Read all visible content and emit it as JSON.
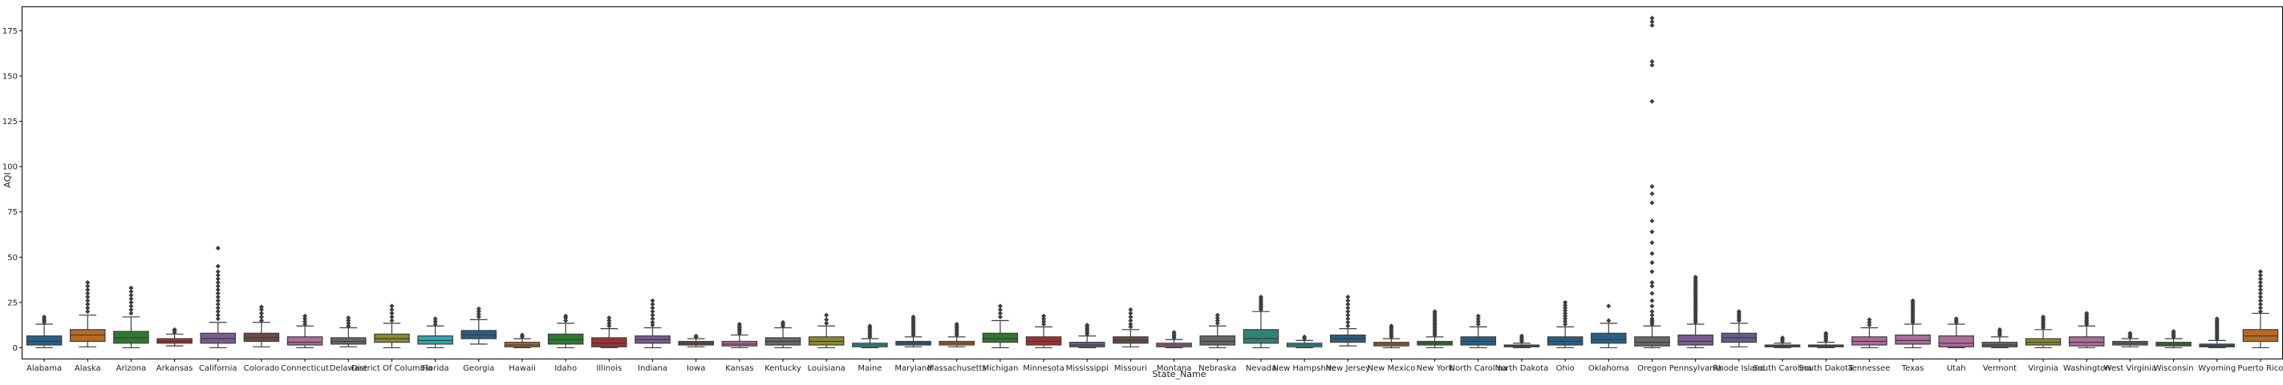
{
  "chart_data": {
    "type": "box",
    "xlabel": "State_Name",
    "ylabel": "AQI",
    "ylim": [
      -6,
      188
    ],
    "yticks": [
      0,
      25,
      50,
      75,
      100,
      125,
      150,
      175
    ],
    "grid": false,
    "legend": "none",
    "categories": [
      {
        "name": "Alabama",
        "q1": 1.5,
        "median": 3.5,
        "q3": 6.5,
        "whislo": 0,
        "whishi": 13,
        "outliers": [
          14,
          15,
          16,
          17
        ],
        "color": "#3274a1"
      },
      {
        "name": "Alaska",
        "q1": 3.5,
        "median": 7,
        "q3": 10,
        "whislo": 0.5,
        "whishi": 18,
        "outliers": [
          20,
          22,
          24,
          26,
          28,
          30,
          32,
          34,
          36
        ],
        "color": "#e1812c"
      },
      {
        "name": "Arizona",
        "q1": 2.5,
        "median": 5.5,
        "q3": 9,
        "whislo": 0,
        "whishi": 17,
        "outliers": [
          19,
          21,
          23,
          25,
          27,
          29,
          31,
          33
        ],
        "color": "#3a923a"
      },
      {
        "name": "Arkansas",
        "q1": 2.5,
        "median": 3.5,
        "q3": 5,
        "whislo": 1,
        "whishi": 7.5,
        "outliers": [
          8.5,
          9.5,
          10
        ],
        "color": "#c03d3e"
      },
      {
        "name": "California",
        "q1": 2.5,
        "median": 5,
        "q3": 8,
        "whislo": 0,
        "whishi": 14,
        "outliers": [
          16,
          18,
          20,
          22,
          24,
          26,
          28,
          30,
          32,
          34,
          36,
          38,
          40,
          42,
          45,
          55
        ],
        "color": "#9372b2"
      },
      {
        "name": "Colorado",
        "q1": 3.5,
        "median": 5.5,
        "q3": 8,
        "whislo": 0.5,
        "whishi": 14,
        "outliers": [
          15,
          17,
          19,
          21,
          22.5
        ],
        "color": "#845b53"
      },
      {
        "name": "Connecticut",
        "q1": 1.5,
        "median": 3,
        "q3": 6,
        "whislo": 0,
        "whishi": 12,
        "outliers": [
          13,
          14.5,
          16,
          17.5
        ],
        "color": "#d684bd"
      },
      {
        "name": "Delaware",
        "q1": 2,
        "median": 3.5,
        "q3": 5.5,
        "whislo": 0.5,
        "whishi": 11,
        "outliers": [
          12,
          13.5,
          15,
          16.5
        ],
        "color": "#7f7f7f"
      },
      {
        "name": "District Of Columbia",
        "q1": 3,
        "median": 5,
        "q3": 7.5,
        "whislo": 0,
        "whishi": 13.5,
        "outliers": [
          15,
          17,
          19,
          21,
          23
        ],
        "color": "#a9aa35"
      },
      {
        "name": "Florida",
        "q1": 2,
        "median": 4,
        "q3": 6.5,
        "whislo": 0,
        "whishi": 12,
        "outliers": [
          13,
          14.5,
          16
        ],
        "color": "#2ed0de"
      },
      {
        "name": "Georgia",
        "q1": 5,
        "median": 7,
        "q3": 9.5,
        "whislo": 2,
        "whishi": 15.5,
        "outliers": [
          17,
          18.5,
          20,
          21.5
        ],
        "color": "#3274a1"
      },
      {
        "name": "Hawaii",
        "q1": 0.5,
        "median": 1.5,
        "q3": 3,
        "whislo": 0,
        "whishi": 5,
        "outliers": [
          6,
          7
        ],
        "color": "#e1812c"
      },
      {
        "name": "Idaho",
        "q1": 2,
        "median": 4.5,
        "q3": 7.5,
        "whislo": 0,
        "whishi": 13.5,
        "outliers": [
          15,
          16.5,
          17.5
        ],
        "color": "#3a923a"
      },
      {
        "name": "Illinois",
        "q1": 0.5,
        "median": 2.5,
        "q3": 5.5,
        "whislo": 0,
        "whishi": 10.5,
        "outliers": [
          12,
          13.5,
          15,
          16.5
        ],
        "color": "#c03d3e"
      },
      {
        "name": "Indiana",
        "q1": 2.5,
        "median": 4.5,
        "q3": 6.5,
        "whislo": 0,
        "whishi": 11,
        "outliers": [
          12.5,
          14,
          16,
          18,
          20,
          22,
          24,
          26
        ],
        "color": "#9372b2"
      },
      {
        "name": "Iowa",
        "q1": 1.5,
        "median": 2.5,
        "q3": 3.5,
        "whislo": 0.5,
        "whishi": 5,
        "outliers": [
          6,
          6.5
        ],
        "color": "#845b53"
      },
      {
        "name": "Kansas",
        "q1": 1,
        "median": 2,
        "q3": 3.5,
        "whislo": 0,
        "whishi": 7,
        "outliers": [
          8,
          9,
          10,
          11,
          12,
          13
        ],
        "color": "#d684bd"
      },
      {
        "name": "Kentucky",
        "q1": 1.5,
        "median": 3.5,
        "q3": 5.5,
        "whislo": 0,
        "whishi": 11,
        "outliers": [
          12,
          13,
          14
        ],
        "color": "#7f7f7f"
      },
      {
        "name": "Louisiana",
        "q1": 1.5,
        "median": 3.5,
        "q3": 6,
        "whislo": 0,
        "whishi": 12,
        "outliers": [
          13.5,
          15.5,
          18
        ],
        "color": "#a9aa35"
      },
      {
        "name": "Maine",
        "q1": 0.5,
        "median": 1.5,
        "q3": 2.5,
        "whislo": 0,
        "whishi": 5,
        "outliers": [
          6,
          7,
          8,
          9,
          10,
          11,
          12
        ],
        "color": "#2ed0de"
      },
      {
        "name": "Maryland",
        "q1": 1.5,
        "median": 2.5,
        "q3": 3.5,
        "whislo": 0.5,
        "whishi": 6,
        "outliers": [
          7,
          8,
          9,
          10,
          11,
          12,
          13,
          14,
          15,
          16,
          17
        ],
        "color": "#3274a1"
      },
      {
        "name": "Massachusetts",
        "q1": 1.5,
        "median": 2.5,
        "q3": 3.5,
        "whislo": 0.5,
        "whishi": 6,
        "outliers": [
          7,
          8,
          9,
          10,
          11,
          12,
          13
        ],
        "color": "#e1812c"
      },
      {
        "name": "Michigan",
        "q1": 3,
        "median": 5,
        "q3": 8,
        "whislo": 0,
        "whishi": 15,
        "outliers": [
          17,
          19,
          21,
          23
        ],
        "color": "#3a923a"
      },
      {
        "name": "Minnesota",
        "q1": 1.5,
        "median": 3.5,
        "q3": 6,
        "whislo": 0,
        "whishi": 11.5,
        "outliers": [
          13,
          14.5,
          16,
          17.5
        ],
        "color": "#c03d3e"
      },
      {
        "name": "Mississippi",
        "q1": 0.5,
        "median": 1.5,
        "q3": 3,
        "whislo": 0,
        "whishi": 6.5,
        "outliers": [
          7.5,
          8.5,
          9.5,
          10.5,
          11.5,
          12.5
        ],
        "color": "#9372b2"
      },
      {
        "name": "Missouri",
        "q1": 2.5,
        "median": 4,
        "q3": 6,
        "whislo": 0.5,
        "whishi": 10,
        "outliers": [
          11.5,
          13,
          15,
          17,
          19,
          21
        ],
        "color": "#845b53"
      },
      {
        "name": "Montana",
        "q1": 0.5,
        "median": 1.5,
        "q3": 2.5,
        "whislo": 0,
        "whishi": 4.5,
        "outliers": [
          5.5,
          6.5,
          7.5,
          8.5
        ],
        "color": "#d684bd"
      },
      {
        "name": "Nebraska",
        "q1": 1.5,
        "median": 3.5,
        "q3": 6.5,
        "whislo": 0,
        "whishi": 12,
        "outliers": [
          13.5,
          15,
          16.5,
          18
        ],
        "color": "#7f7f7f"
      },
      {
        "name": "Nevada",
        "q1": 2.5,
        "median": 5,
        "q3": 10,
        "whislo": 0,
        "whishi": 20,
        "outliers": [
          21,
          22,
          23,
          24,
          25,
          26,
          27,
          28
        ],
        "color": "#3a9e8d"
      },
      {
        "name": "New Hampshire",
        "q1": 0.5,
        "median": 1.5,
        "q3": 2.5,
        "whislo": 0,
        "whishi": 4,
        "outliers": [
          5,
          6
        ],
        "color": "#2ed0de"
      },
      {
        "name": "New Jersey",
        "q1": 3,
        "median": 5,
        "q3": 7,
        "whislo": 1,
        "whishi": 10.5,
        "outliers": [
          12,
          14,
          16,
          18,
          20,
          22,
          24,
          26,
          28
        ],
        "color": "#3274a1"
      },
      {
        "name": "New Mexico",
        "q1": 1,
        "median": 2,
        "q3": 3,
        "whislo": 0,
        "whishi": 5,
        "outliers": [
          6,
          7,
          8,
          9,
          10,
          11,
          12
        ],
        "color": "#e1812c"
      },
      {
        "name": "New York",
        "q1": 1.5,
        "median": 2.5,
        "q3": 3.5,
        "whislo": 0,
        "whishi": 6,
        "outliers": [
          7,
          8,
          9,
          10,
          11,
          12,
          13,
          14,
          15,
          16,
          17,
          18,
          19,
          20
        ],
        "color": "#3a923a"
      },
      {
        "name": "North Carolina",
        "q1": 1.5,
        "median": 3.5,
        "q3": 6,
        "whislo": 0,
        "whishi": 11.5,
        "outliers": [
          13,
          14.5,
          16,
          17.5
        ],
        "color": "#3274a1"
      },
      {
        "name": "North Dakota",
        "q1": 0.5,
        "median": 1,
        "q3": 1.5,
        "whislo": 0,
        "whishi": 2.5,
        "outliers": [
          3.5,
          4.5,
          5.5,
          6.5
        ],
        "color": "#9372b2"
      },
      {
        "name": "Ohio",
        "q1": 1.5,
        "median": 3.5,
        "q3": 6,
        "whislo": 0,
        "whishi": 11.5,
        "outliers": [
          13,
          14.5,
          16,
          17.5,
          19,
          20.5,
          22,
          23.5,
          25
        ],
        "color": "#3274a1"
      },
      {
        "name": "Oklahoma",
        "q1": 2.5,
        "median": 4.5,
        "q3": 8,
        "whislo": 0,
        "whishi": 13.5,
        "outliers": [
          15,
          23
        ],
        "color": "#3274a1"
      },
      {
        "name": "Oregon",
        "q1": 1,
        "median": 3,
        "q3": 6,
        "whislo": 0,
        "whishi": 12,
        "outliers": [
          13,
          14,
          15,
          16,
          18,
          20,
          23,
          26,
          30,
          34,
          36,
          42,
          47,
          52,
          58,
          64,
          70,
          80,
          85,
          89,
          136,
          156,
          158,
          178,
          180,
          182
        ],
        "color": "#7f7f7f"
      },
      {
        "name": "Pennsylvania",
        "q1": 1.5,
        "median": 3.5,
        "q3": 7,
        "whislo": 0,
        "whishi": 13,
        "outliers": [
          14,
          15,
          16,
          17,
          18,
          19,
          20,
          21,
          22,
          23,
          24,
          25,
          26,
          27,
          28,
          29,
          30,
          31,
          32,
          33,
          34,
          35,
          36,
          37,
          38,
          39
        ],
        "color": "#9372b2"
      },
      {
        "name": "Rhode Island",
        "q1": 3,
        "median": 5.5,
        "q3": 8,
        "whislo": 0.5,
        "whishi": 13.5,
        "outliers": [
          15,
          16,
          17,
          18,
          19,
          20
        ],
        "color": "#7b70a8"
      },
      {
        "name": "South Carolina",
        "q1": 0.5,
        "median": 1,
        "q3": 1.5,
        "whislo": 0,
        "whishi": 2.5,
        "outliers": [
          3.5,
          4.5,
          5.5
        ],
        "color": "#3a923a"
      },
      {
        "name": "South Dakota",
        "q1": 0.5,
        "median": 1,
        "q3": 1.5,
        "whislo": 0,
        "whishi": 3,
        "outliers": [
          4,
          5,
          6,
          7,
          8
        ],
        "color": "#c03d3e"
      },
      {
        "name": "Tennessee",
        "q1": 1.5,
        "median": 3.5,
        "q3": 6,
        "whislo": 0,
        "whishi": 11,
        "outliers": [
          12.5,
          14,
          15.5
        ],
        "color": "#d684bd"
      },
      {
        "name": "Texas",
        "q1": 2,
        "median": 4,
        "q3": 7,
        "whislo": 0,
        "whishi": 13,
        "outliers": [
          14,
          15,
          16,
          17,
          18,
          19,
          20,
          21,
          22,
          23,
          24,
          25,
          26
        ],
        "color": "#d684bd"
      },
      {
        "name": "Utah",
        "q1": 0.5,
        "median": 2.5,
        "q3": 6.5,
        "whislo": 0,
        "whishi": 13,
        "outliers": [
          14,
          15,
          16
        ],
        "color": "#d684bd"
      },
      {
        "name": "Vermont",
        "q1": 0.5,
        "median": 1.5,
        "q3": 3,
        "whislo": 0,
        "whishi": 6,
        "outliers": [
          7,
          8,
          9,
          10
        ],
        "color": "#7f7f7f"
      },
      {
        "name": "Virginia",
        "q1": 1.5,
        "median": 3,
        "q3": 5,
        "whislo": 0,
        "whishi": 10,
        "outliers": [
          11,
          12,
          13,
          14,
          15,
          16,
          17
        ],
        "color": "#a9aa35"
      },
      {
        "name": "Washington",
        "q1": 1,
        "median": 3,
        "q3": 6,
        "whislo": 0,
        "whishi": 12,
        "outliers": [
          13,
          14,
          15,
          16,
          17,
          18,
          19
        ],
        "color": "#d684bd"
      },
      {
        "name": "West Virginia",
        "q1": 1.5,
        "median": 2.5,
        "q3": 3.5,
        "whislo": 0.5,
        "whishi": 5,
        "outliers": [
          6,
          7,
          8
        ],
        "color": "#7f7f7f"
      },
      {
        "name": "Wisconsin",
        "q1": 1,
        "median": 2,
        "q3": 3,
        "whislo": 0,
        "whishi": 5,
        "outliers": [
          6,
          7,
          8,
          9
        ],
        "color": "#3a923a"
      },
      {
        "name": "Wyoming",
        "q1": 0.5,
        "median": 1,
        "q3": 2,
        "whislo": 0,
        "whishi": 4,
        "outliers": [
          5,
          6,
          7,
          8,
          9,
          10,
          11,
          12,
          13,
          14,
          15,
          16
        ],
        "color": "#3274a1"
      },
      {
        "name": "Puerto Rico",
        "q1": 3.5,
        "median": 6.5,
        "q3": 10,
        "whislo": 0,
        "whishi": 19,
        "outliers": [
          20,
          22,
          24,
          26,
          28,
          30,
          32,
          34,
          36,
          38,
          40,
          42
        ],
        "color": "#e1812c"
      }
    ]
  }
}
